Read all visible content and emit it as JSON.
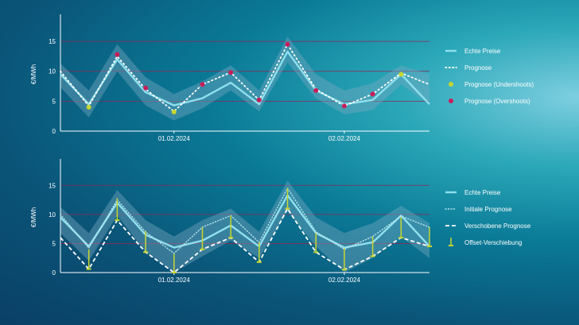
{
  "colors": {
    "real": "#8fe0ee",
    "forecast": "#ffffff",
    "under": "#c7d631",
    "over": "#c81e5a",
    "band": "#7aa9c0",
    "grid": "#8a2a55",
    "axis": "#ffffff"
  },
  "chart_data": [
    {
      "type": "line",
      "ylabel": "€/MWh",
      "ylim": [
        0,
        19
      ],
      "yticks": [
        0,
        5,
        10,
        15
      ],
      "xticks": [
        {
          "x": 4,
          "label": "01.02.2024"
        },
        {
          "x": 10,
          "label": "02.02.2024"
        }
      ],
      "x": [
        0,
        1,
        2,
        3,
        4,
        5,
        6,
        7,
        8,
        9,
        10,
        11,
        12,
        13
      ],
      "series": [
        {
          "name": "Echte Preise",
          "values": [
            9.5,
            4.5,
            12,
            6.5,
            4.3,
            5.5,
            8.1,
            4.5,
            13.3,
            6.8,
            4.5,
            5.2,
            9.5,
            4.5
          ]
        },
        {
          "name": "Prognose",
          "values": [
            10,
            4.2,
            12.5,
            7,
            3.3,
            7.8,
            9.8,
            5.2,
            14.5,
            7,
            4.2,
            6.2,
            9.7,
            7.8
          ]
        },
        {
          "name": "Prognose (Undershoots)",
          "points": [
            [
              1,
              4.0
            ],
            [
              4,
              3.2
            ],
            [
              12,
              9.5
            ]
          ]
        },
        {
          "name": "Prognose (Overshoots)",
          "points": [
            [
              2,
              12.8
            ],
            [
              3,
              7.2
            ],
            [
              5,
              7.8
            ],
            [
              6,
              9.8
            ],
            [
              7,
              5.2
            ],
            [
              8,
              14.5
            ],
            [
              9,
              6.8
            ],
            [
              10,
              4.2
            ],
            [
              11,
              6.2
            ]
          ]
        }
      ],
      "band": {
        "lower": [
          7.3,
          2.3,
          10,
          4.3,
          1.8,
          3.8,
          6.8,
          3.3,
          11.5,
          5.5,
          2.8,
          3.5,
          7.8,
          4.5
        ],
        "upper": [
          11.3,
          6.8,
          14.5,
          9,
          6.2,
          8.3,
          11,
          6.8,
          15.8,
          9.5,
          6.8,
          8,
          11,
          9.5
        ]
      },
      "legend": [
        "Echte Preise",
        "Prognose",
        "Prognose (Undershoots)",
        "Prognose (Overshoots)"
      ]
    },
    {
      "type": "line",
      "ylabel": "€/MWh",
      "ylim": [
        0,
        19
      ],
      "yticks": [
        0,
        5,
        10,
        15
      ],
      "xticks": [
        {
          "x": 4,
          "label": "01.02.2024"
        },
        {
          "x": 10,
          "label": "02.02.2024"
        }
      ],
      "x": [
        0,
        1,
        2,
        3,
        4,
        5,
        6,
        7,
        8,
        9,
        10,
        11,
        12,
        13
      ],
      "series": [
        {
          "name": "Echte Preise",
          "values": [
            9.5,
            4.5,
            12,
            6.5,
            4.3,
            5.5,
            8.1,
            4.5,
            13.3,
            6.8,
            4.3,
            5.2,
            9.8,
            4.5
          ]
        },
        {
          "name": "Initiale Prognose",
          "values": [
            10,
            4.2,
            12.5,
            7,
            3.3,
            7.8,
            9.8,
            5.2,
            14.5,
            7,
            4,
            6.2,
            9.7,
            7.8
          ]
        },
        {
          "name": "Verschobene Prognose",
          "values": [
            6,
            0.6,
            9,
            3.5,
            0,
            4,
            6,
            1.8,
            11,
            3.5,
            0.5,
            2.8,
            6,
            4.5
          ]
        },
        {
          "name": "Offset-Verschiebung",
          "points": [
            [
              1,
              4.0,
              0.6
            ],
            [
              2,
              12.8,
              9.0
            ],
            [
              3,
              7.2,
              3.5
            ],
            [
              4,
              3.2,
              0
            ],
            [
              5,
              7.8,
              4.0
            ],
            [
              6,
              9.8,
              6.0
            ],
            [
              7,
              5.2,
              1.8
            ],
            [
              8,
              14.5,
              11.0
            ],
            [
              9,
              6.8,
              3.5
            ],
            [
              10,
              4.2,
              0.5
            ],
            [
              11,
              6.2,
              2.8
            ],
            [
              12,
              9.5,
              6.0
            ],
            [
              13,
              7.8,
              4.5
            ]
          ]
        }
      ],
      "band": {
        "lower": [
          6.8,
          2,
          9.8,
          3.5,
          0,
          2.8,
          5.5,
          2.5,
          10.5,
          4.5,
          0,
          2.5,
          6.2,
          2.5
        ],
        "upper": [
          11.3,
          6.8,
          14.2,
          9,
          6.2,
          9,
          11,
          7,
          15.8,
          9.5,
          6.8,
          8.5,
          11.5,
          8.5
        ]
      },
      "legend": [
        "Echte Preise",
        "Initiale Prognose",
        "Verschobene Prognose",
        "Offset-Verschiebung"
      ]
    }
  ]
}
